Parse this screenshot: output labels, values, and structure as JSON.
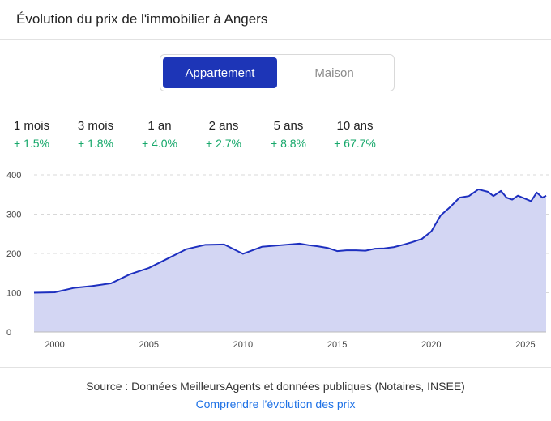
{
  "title": "Évolution du prix de l'immobilier à Angers",
  "toggle": {
    "active": "Appartement",
    "inactive": "Maison"
  },
  "stats": [
    {
      "label": "1 mois",
      "value": "+ 1.5%"
    },
    {
      "label": "3 mois",
      "value": "+ 1.8%"
    },
    {
      "label": "1 an",
      "value": "+ 4.0%"
    },
    {
      "label": "2 ans",
      "value": "+ 2.7%"
    },
    {
      "label": "5 ans",
      "value": "+ 8.8%"
    },
    {
      "label": "10 ans",
      "value": "+ 67.7%"
    }
  ],
  "footer": {
    "source": "Source : Données MeilleursAgents et données publiques (Notaires, INSEE)",
    "link": "Comprendre l’évolution des prix"
  },
  "colors": {
    "accent": "#1d35b7",
    "line": "#1d2fbf",
    "area": "#d3d6f3",
    "positive": "#17a86b",
    "link": "#1f72e6"
  },
  "chart_data": {
    "type": "area",
    "xlim": [
      1998.9,
      2026.1
    ],
    "ylim": [
      0,
      400
    ],
    "yticks": [
      0,
      100,
      200,
      300,
      400
    ],
    "xticks": [
      2000,
      2005,
      2010,
      2015,
      2020,
      2025
    ],
    "grid": true,
    "x": [
      1998.9,
      2000.0,
      2001.0,
      2002.0,
      2003.0,
      2004.0,
      2005.0,
      2006.0,
      2007.0,
      2008.0,
      2009.0,
      2010.0,
      2011.0,
      2012.0,
      2013.0,
      2013.5,
      2014.0,
      2014.5,
      2015.0,
      2015.5,
      2016.0,
      2016.5,
      2017.0,
      2017.5,
      2018.0,
      2018.5,
      2019.0,
      2019.5,
      2020.0,
      2020.5,
      2021.0,
      2021.5,
      2022.0,
      2022.5,
      2023.0,
      2023.3,
      2023.7,
      2024.0,
      2024.3,
      2024.6,
      2024.8,
      2025.0,
      2025.3,
      2025.6,
      2025.9,
      2026.1
    ],
    "values": [
      100,
      101,
      112,
      117,
      124,
      147,
      163,
      187,
      211,
      222,
      223,
      199,
      217,
      221,
      225,
      221,
      218,
      214,
      206,
      208,
      208,
      207,
      212,
      213,
      216,
      222,
      229,
      237,
      256,
      297,
      318,
      342,
      346,
      363,
      357,
      346,
      359,
      342,
      337,
      347,
      343,
      339,
      333,
      355,
      342,
      347
    ]
  }
}
